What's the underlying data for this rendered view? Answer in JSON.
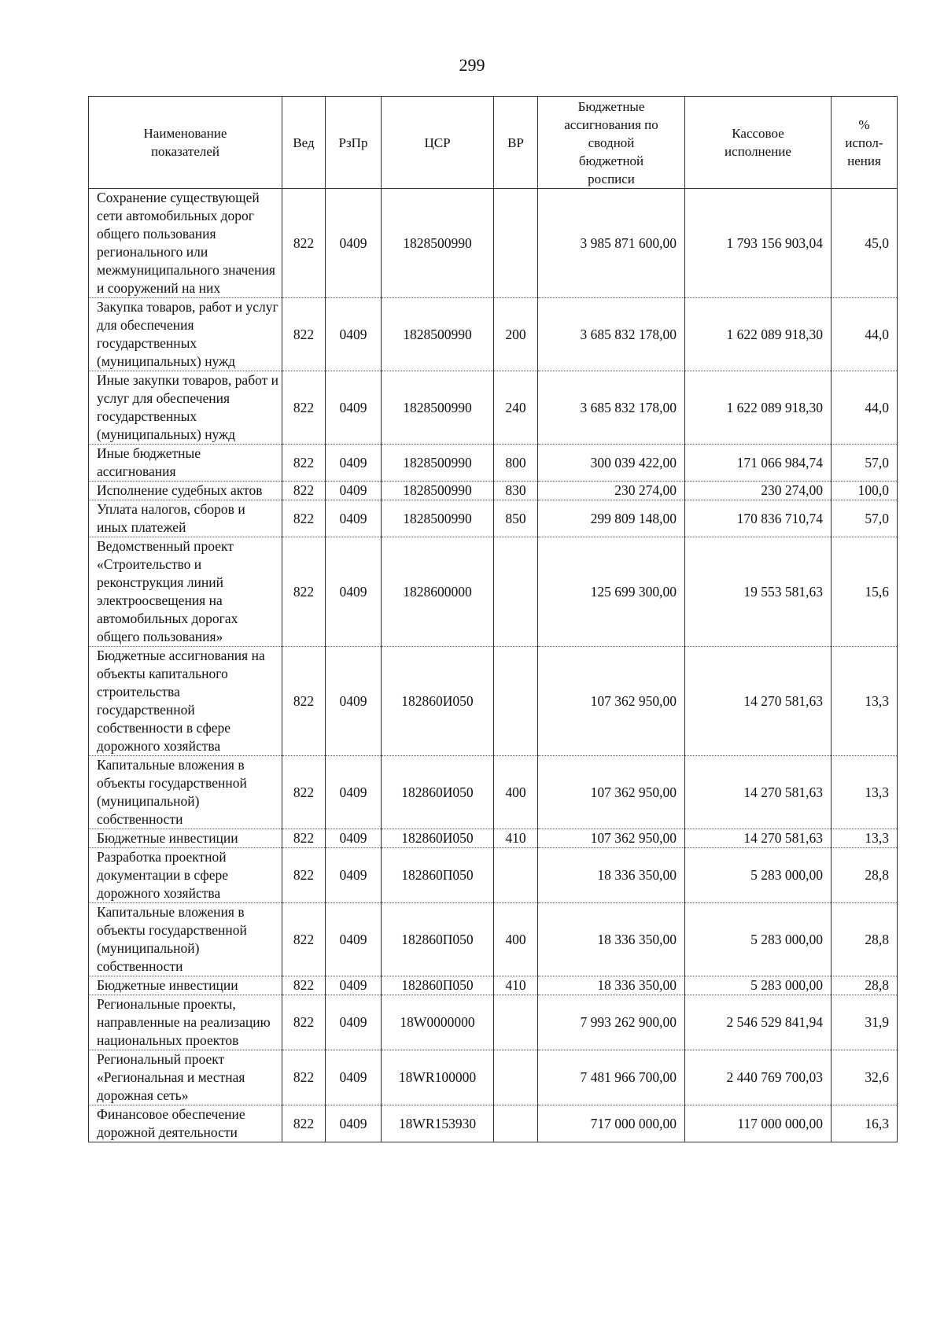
{
  "page_number": "299",
  "table": {
    "header": [
      "Наименование\nпоказателей",
      "Вед",
      "РзПр",
      "ЦСР",
      "ВР",
      "Бюджетные\nассигнования по\nсводной\nбюджетной\nросписи",
      "Кассовое\nисполнение",
      "%\nиспол-\nнения"
    ],
    "rows": [
      [
        "Сохранение существующей сети автомобильных дорог общего пользования регионального или межмуниципального значения и сооружений на них",
        "822",
        "0409",
        "1828500990",
        "",
        "3 985 871 600,00",
        "1 793 156 903,04",
        "45,0"
      ],
      [
        "Закупка товаров, работ и услуг для обеспечения государственных (муниципальных) нужд",
        "822",
        "0409",
        "1828500990",
        "200",
        "3 685 832 178,00",
        "1 622 089 918,30",
        "44,0"
      ],
      [
        "Иные закупки товаров, работ и услуг для обеспечения государственных (муниципальных) нужд",
        "822",
        "0409",
        "1828500990",
        "240",
        "3 685 832 178,00",
        "1 622 089 918,30",
        "44,0"
      ],
      [
        "Иные бюджетные ассигнования",
        "822",
        "0409",
        "1828500990",
        "800",
        "300 039 422,00",
        "171 066 984,74",
        "57,0"
      ],
      [
        "Исполнение судебных актов",
        "822",
        "0409",
        "1828500990",
        "830",
        "230 274,00",
        "230 274,00",
        "100,0"
      ],
      [
        "Уплата налогов, сборов и иных платежей",
        "822",
        "0409",
        "1828500990",
        "850",
        "299 809 148,00",
        "170 836 710,74",
        "57,0"
      ],
      [
        "Ведомственный проект «Строительство и реконструкция линий электроосвещения на автомобильных дорогах общего пользования»",
        "822",
        "0409",
        "1828600000",
        "",
        "125 699 300,00",
        "19 553 581,63",
        "15,6"
      ],
      [
        "Бюджетные ассигнования на объекты капитального строительства государственной собственности в сфере дорожного хозяйства",
        "822",
        "0409",
        "182860И050",
        "",
        "107 362 950,00",
        "14 270 581,63",
        "13,3"
      ],
      [
        "Капитальные вложения в объекты государственной (муниципальной) собственности",
        "822",
        "0409",
        "182860И050",
        "400",
        "107 362 950,00",
        "14 270 581,63",
        "13,3"
      ],
      [
        "Бюджетные инвестиции",
        "822",
        "0409",
        "182860И050",
        "410",
        "107 362 950,00",
        "14 270 581,63",
        "13,3"
      ],
      [
        "Разработка проектной документации в сфере дорожного хозяйства",
        "822",
        "0409",
        "182860П050",
        "",
        "18 336 350,00",
        "5 283 000,00",
        "28,8"
      ],
      [
        "Капитальные вложения в объекты государственной (муниципальной) собственности",
        "822",
        "0409",
        "182860П050",
        "400",
        "18 336 350,00",
        "5 283 000,00",
        "28,8"
      ],
      [
        "Бюджетные инвестиции",
        "822",
        "0409",
        "182860П050",
        "410",
        "18 336 350,00",
        "5 283 000,00",
        "28,8"
      ],
      [
        "Региональные проекты, направленные на реализацию национальных проектов",
        "822",
        "0409",
        "18W0000000",
        "",
        "7 993 262 900,00",
        "2 546 529 841,94",
        "31,9"
      ],
      [
        "Региональный проект «Региональная и местная дорожная сеть»",
        "822",
        "0409",
        "18WR100000",
        "",
        "7 481 966 700,00",
        "2 440 769 700,03",
        "32,6"
      ],
      [
        "Финансовое обеспечение дорожной деятельности",
        "822",
        "0409",
        "18WR153930",
        "",
        "717 000 000,00",
        "117 000 000,00",
        "16,3"
      ]
    ]
  }
}
